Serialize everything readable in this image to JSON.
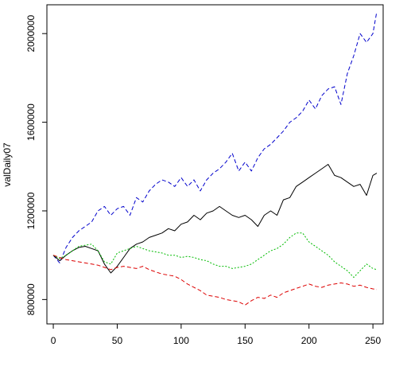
{
  "chart_data": {
    "type": "line",
    "title": "",
    "xlabel": "",
    "ylabel": "valDaily07",
    "xlim": [
      -5,
      258
    ],
    "ylim": [
      690000,
      2130000
    ],
    "x_ticks": [
      0,
      50,
      100,
      150,
      200,
      250
    ],
    "y_ticks": [
      800000,
      1200000,
      1600000,
      2000000
    ],
    "grid": false,
    "legend": "none",
    "series": [
      {
        "color": "#0000cc",
        "dash": "dashed",
        "x": [
          0,
          5,
          10,
          15,
          20,
          25,
          30,
          35,
          40,
          45,
          50,
          55,
          60,
          65,
          70,
          75,
          80,
          85,
          90,
          95,
          100,
          105,
          110,
          115,
          120,
          125,
          130,
          135,
          140,
          145,
          150,
          155,
          160,
          165,
          170,
          175,
          180,
          185,
          190,
          195,
          200,
          205,
          210,
          215,
          220,
          225,
          230,
          235,
          240,
          245,
          250,
          253
        ],
        "y": [
          1000000,
          965000,
          1035000,
          1080000,
          1110000,
          1130000,
          1150000,
          1200000,
          1220000,
          1180000,
          1210000,
          1220000,
          1180000,
          1260000,
          1240000,
          1290000,
          1320000,
          1340000,
          1330000,
          1310000,
          1350000,
          1310000,
          1340000,
          1290000,
          1340000,
          1370000,
          1390000,
          1420000,
          1460000,
          1380000,
          1420000,
          1380000,
          1440000,
          1480000,
          1500000,
          1530000,
          1560000,
          1600000,
          1620000,
          1650000,
          1700000,
          1660000,
          1720000,
          1750000,
          1760000,
          1680000,
          1820000,
          1900000,
          2000000,
          1960000,
          2000000,
          2100000
        ]
      },
      {
        "color": "#000000",
        "dash": "solid",
        "x": [
          0,
          5,
          10,
          15,
          20,
          25,
          30,
          35,
          40,
          45,
          50,
          55,
          60,
          65,
          70,
          75,
          80,
          85,
          90,
          95,
          100,
          105,
          110,
          115,
          120,
          125,
          130,
          135,
          140,
          145,
          150,
          155,
          160,
          165,
          170,
          175,
          180,
          185,
          190,
          195,
          200,
          205,
          210,
          215,
          220,
          225,
          230,
          235,
          240,
          245,
          250,
          253
        ],
        "y": [
          1000000,
          975000,
          1000000,
          1020000,
          1035000,
          1040000,
          1030000,
          1020000,
          960000,
          920000,
          950000,
          990000,
          1030000,
          1050000,
          1060000,
          1080000,
          1090000,
          1100000,
          1120000,
          1110000,
          1140000,
          1150000,
          1180000,
          1160000,
          1190000,
          1200000,
          1220000,
          1200000,
          1180000,
          1170000,
          1180000,
          1160000,
          1130000,
          1180000,
          1200000,
          1180000,
          1250000,
          1260000,
          1310000,
          1330000,
          1350000,
          1370000,
          1390000,
          1410000,
          1360000,
          1350000,
          1330000,
          1310000,
          1320000,
          1270000,
          1360000,
          1370000
        ]
      },
      {
        "color": "#00bb00",
        "dash": "dotted",
        "x": [
          0,
          5,
          10,
          15,
          20,
          25,
          30,
          35,
          40,
          45,
          50,
          55,
          60,
          65,
          70,
          75,
          80,
          85,
          90,
          95,
          100,
          105,
          110,
          115,
          120,
          125,
          130,
          135,
          140,
          145,
          150,
          155,
          160,
          165,
          170,
          175,
          180,
          185,
          190,
          195,
          200,
          205,
          210,
          215,
          220,
          225,
          230,
          235,
          240,
          245,
          250,
          253
        ],
        "y": [
          1000000,
          985000,
          1000000,
          1020000,
          1040000,
          1045000,
          1050000,
          1020000,
          970000,
          960000,
          1010000,
          1020000,
          1030000,
          1040000,
          1030000,
          1020000,
          1015000,
          1010000,
          1000000,
          1000000,
          990000,
          995000,
          990000,
          980000,
          975000,
          960000,
          950000,
          950000,
          940000,
          945000,
          950000,
          960000,
          980000,
          1000000,
          1020000,
          1030000,
          1050000,
          1080000,
          1100000,
          1100000,
          1060000,
          1040000,
          1020000,
          1000000,
          970000,
          950000,
          930000,
          900000,
          930000,
          960000,
          940000,
          935000
        ]
      },
      {
        "color": "#dd0000",
        "dash": "dashed",
        "x": [
          0,
          5,
          10,
          15,
          20,
          25,
          30,
          35,
          40,
          45,
          50,
          55,
          60,
          65,
          70,
          75,
          80,
          85,
          90,
          95,
          100,
          105,
          110,
          115,
          120,
          125,
          130,
          135,
          140,
          145,
          150,
          155,
          160,
          165,
          170,
          175,
          180,
          185,
          190,
          195,
          200,
          205,
          210,
          215,
          220,
          225,
          230,
          235,
          240,
          245,
          250,
          253
        ],
        "y": [
          1000000,
          990000,
          980000,
          975000,
          970000,
          965000,
          960000,
          955000,
          945000,
          935000,
          945000,
          950000,
          945000,
          940000,
          950000,
          935000,
          925000,
          915000,
          910000,
          905000,
          890000,
          870000,
          855000,
          840000,
          820000,
          815000,
          810000,
          800000,
          795000,
          790000,
          775000,
          795000,
          810000,
          805000,
          820000,
          810000,
          830000,
          840000,
          850000,
          860000,
          870000,
          860000,
          855000,
          865000,
          870000,
          875000,
          870000,
          860000,
          865000,
          855000,
          848000,
          845000
        ]
      }
    ]
  }
}
